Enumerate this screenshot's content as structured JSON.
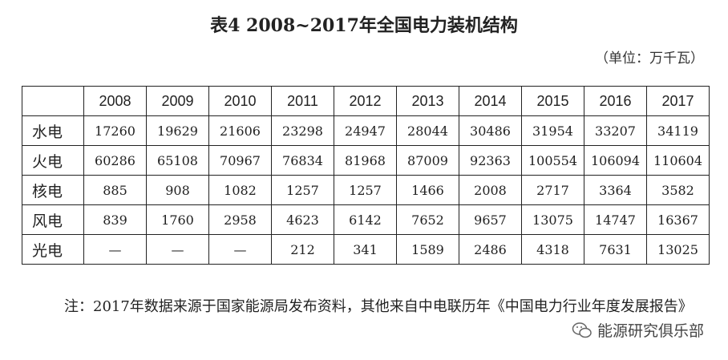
{
  "title": "表4  2008~2017年全国电力装机结构",
  "unit": "（单位：万千瓦）",
  "table": {
    "headers": [
      "",
      "2008",
      "2009",
      "2010",
      "2011",
      "2012",
      "2013",
      "2014",
      "2015",
      "2016",
      "2017"
    ],
    "rows": [
      {
        "label": "水电",
        "values": [
          "17260",
          "19629",
          "21606",
          "23298",
          "24947",
          "28044",
          "30486",
          "31954",
          "33207",
          "34119"
        ]
      },
      {
        "label": "火电",
        "values": [
          "60286",
          "65108",
          "70967",
          "76834",
          "81968",
          "87009",
          "92363",
          "100554",
          "106094",
          "110604"
        ]
      },
      {
        "label": "核电",
        "values": [
          "885",
          "908",
          "1082",
          "1257",
          "1257",
          "1466",
          "2008",
          "2717",
          "3364",
          "3582"
        ]
      },
      {
        "label": "风电",
        "values": [
          "839",
          "1760",
          "2958",
          "4623",
          "6142",
          "7652",
          "9657",
          "13075",
          "14747",
          "16367"
        ]
      },
      {
        "label": "光电",
        "values": [
          "—",
          "—",
          "—",
          "212",
          "341",
          "1589",
          "2486",
          "4318",
          "7631",
          "13025"
        ]
      }
    ]
  },
  "note": "注：2017年数据来源于国家能源局发布资料，其他来自中电联历年《中国电力行业年度发展报告》",
  "watermark": {
    "icon": "wechat-icon",
    "text": "能源研究俱乐部"
  }
}
